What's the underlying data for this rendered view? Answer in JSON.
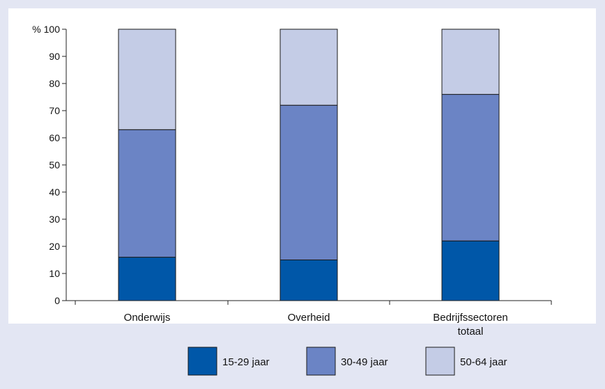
{
  "chart_data": {
    "type": "bar",
    "stacked": true,
    "y_prefix": "%",
    "ylim": [
      0,
      100
    ],
    "yticks": [
      0,
      10,
      20,
      30,
      40,
      50,
      60,
      70,
      80,
      90,
      100
    ],
    "categories": [
      [
        "Onderwijs"
      ],
      [
        "Overheid"
      ],
      [
        "Bedrijfssectoren",
        "totaal"
      ]
    ],
    "series": [
      {
        "name": "15-29 jaar",
        "color": "#0057a8",
        "values": [
          16,
          15,
          22
        ]
      },
      {
        "name": "30-49 jaar",
        "color": "#6b84c5",
        "values": [
          47,
          57,
          54
        ]
      },
      {
        "name": "50-64 jaar",
        "color": "#c4cce6",
        "values": [
          37,
          28,
          24
        ]
      }
    ],
    "grid": false,
    "legend": "bottom",
    "plot_background": "#ffffff",
    "frame_background": "#e3e6f3"
  }
}
